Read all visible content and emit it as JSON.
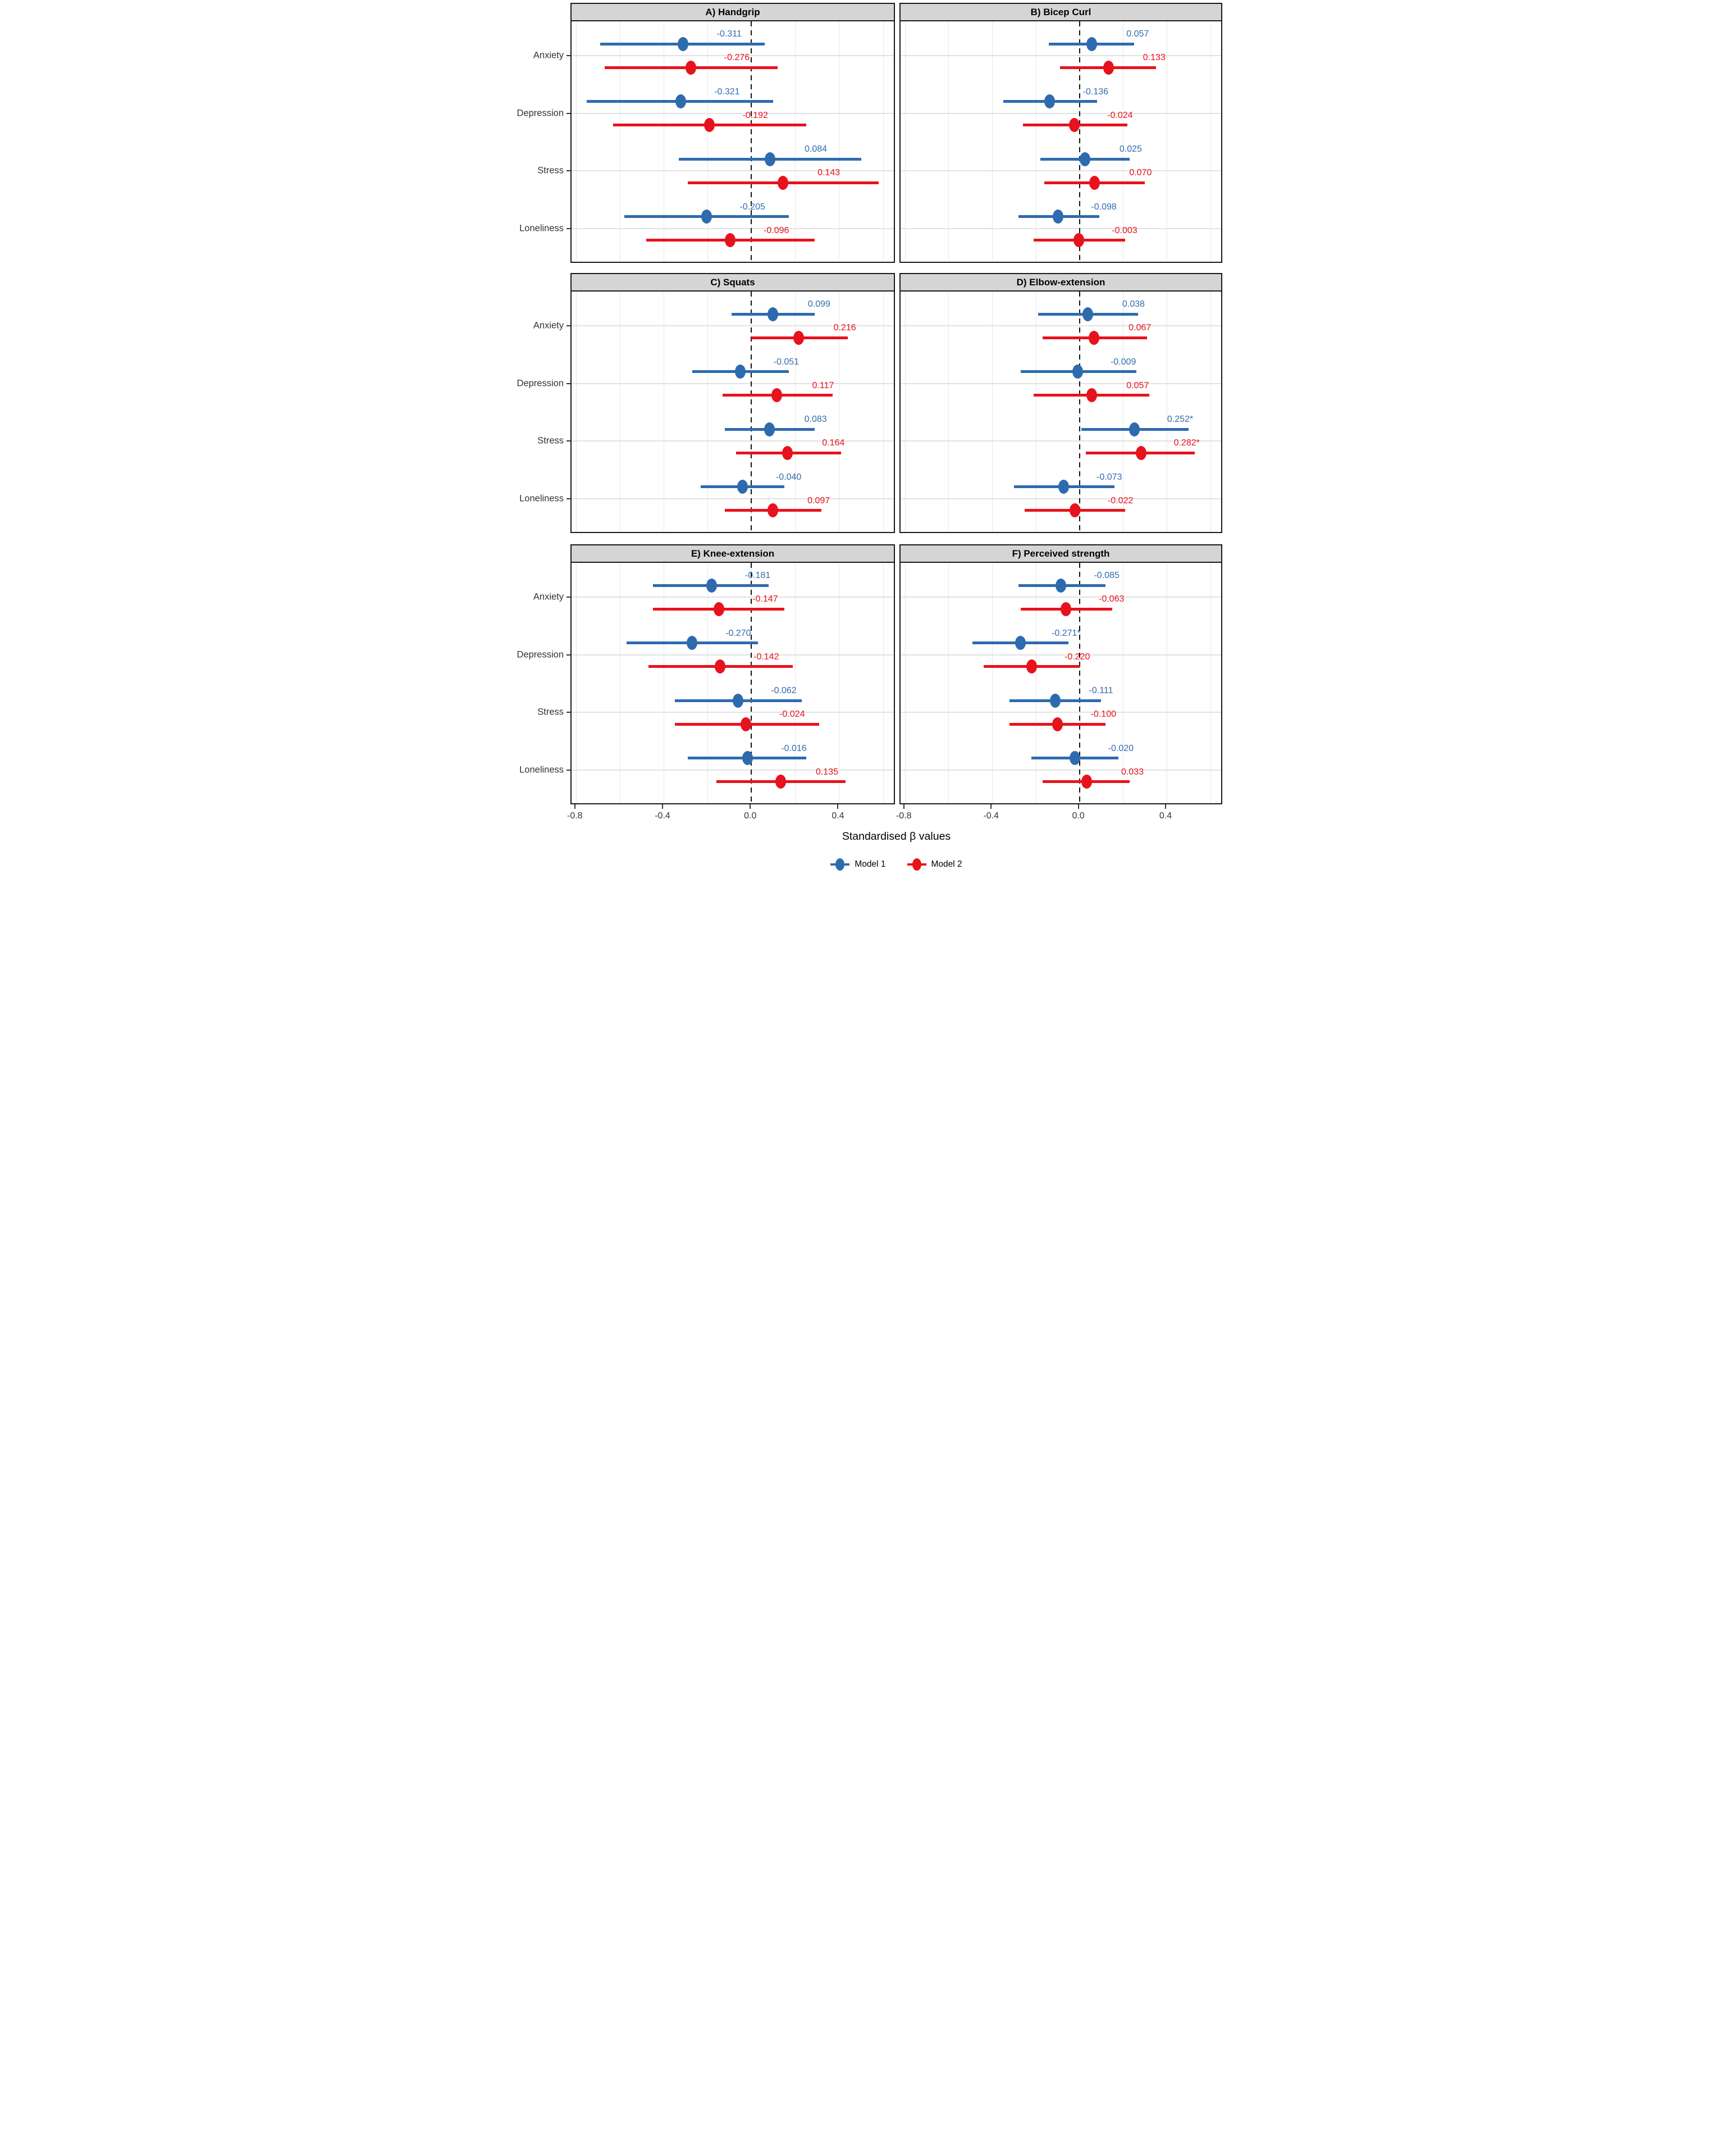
{
  "figure": {
    "x_axis": {
      "title": "Standardised β values",
      "tick_labels": [
        "-0.8",
        "-0.4",
        "0.0",
        "0.4"
      ],
      "tick_values": [
        -0.8,
        -0.4,
        0.0,
        0.4
      ],
      "domain": [
        -0.82,
        0.66
      ],
      "gridline_step": 0.2,
      "zero_reference_line": "dashed"
    },
    "categories": [
      "Anxiety",
      "Depression",
      "Stress",
      "Loneliness"
    ],
    "legend": [
      {
        "label": "Model 1",
        "color": "#2e6bae"
      },
      {
        "label": "Model 2",
        "color": "#e8121c"
      }
    ],
    "colors": {
      "model1": "#2e6bae",
      "model2": "#e8121c",
      "panel_header_bg": "#d5d5d5",
      "panel_border": "#1a1a1a",
      "grid": "#e7e7e7",
      "zero_line": "#111111"
    }
  },
  "chart_data": [
    {
      "type": "scatter",
      "subtype": "dot-and-ci-forest",
      "title": "A) Handgrip",
      "rows": [
        {
          "category": "Anxiety",
          "model1": {
            "value": -0.311,
            "label": "-0.311",
            "ci": [
              -0.69,
              0.06
            ]
          },
          "model2": {
            "value": -0.276,
            "label": "-0.276",
            "ci": [
              -0.67,
              0.12
            ]
          }
        },
        {
          "category": "Depression",
          "model1": {
            "value": -0.321,
            "label": "-0.321",
            "ci": [
              -0.75,
              0.1
            ]
          },
          "model2": {
            "value": -0.192,
            "label": "-0.192",
            "ci": [
              -0.63,
              0.25
            ]
          }
        },
        {
          "category": "Stress",
          "model1": {
            "value": 0.084,
            "label": "0.084",
            "ci": [
              -0.33,
              0.5
            ]
          },
          "model2": {
            "value": 0.143,
            "label": "0.143",
            "ci": [
              -0.29,
              0.58
            ]
          }
        },
        {
          "category": "Loneliness",
          "model1": {
            "value": -0.205,
            "label": "-0.205",
            "ci": [
              -0.58,
              0.17
            ]
          },
          "model2": {
            "value": -0.096,
            "label": "-0.096",
            "ci": [
              -0.48,
              0.29
            ]
          }
        }
      ]
    },
    {
      "type": "scatter",
      "subtype": "dot-and-ci-forest",
      "title": "B) Bicep Curl",
      "rows": [
        {
          "category": "Anxiety",
          "model1": {
            "value": 0.057,
            "label": "0.057",
            "ci": [
              -0.14,
              0.25
            ]
          },
          "model2": {
            "value": 0.133,
            "label": "0.133",
            "ci": [
              -0.09,
              0.35
            ]
          }
        },
        {
          "category": "Depression",
          "model1": {
            "value": -0.136,
            "label": "-0.136",
            "ci": [
              -0.35,
              0.08
            ]
          },
          "model2": {
            "value": -0.024,
            "label": "-0.024",
            "ci": [
              -0.26,
              0.22
            ]
          }
        },
        {
          "category": "Stress",
          "model1": {
            "value": 0.025,
            "label": "0.025",
            "ci": [
              -0.18,
              0.23
            ]
          },
          "model2": {
            "value": 0.07,
            "label": "0.070",
            "ci": [
              -0.16,
              0.3
            ]
          }
        },
        {
          "category": "Loneliness",
          "model1": {
            "value": -0.098,
            "label": "-0.098",
            "ci": [
              -0.28,
              0.09
            ]
          },
          "model2": {
            "value": -0.003,
            "label": "-0.003",
            "ci": [
              -0.21,
              0.21
            ]
          }
        }
      ]
    },
    {
      "type": "scatter",
      "subtype": "dot-and-ci-forest",
      "title": "C) Squats",
      "rows": [
        {
          "category": "Anxiety",
          "model1": {
            "value": 0.099,
            "label": "0.099",
            "ci": [
              -0.09,
              0.29
            ]
          },
          "model2": {
            "value": 0.216,
            "label": "0.216",
            "ci": [
              0.0,
              0.44
            ]
          }
        },
        {
          "category": "Depression",
          "model1": {
            "value": -0.051,
            "label": "-0.051",
            "ci": [
              -0.27,
              0.17
            ]
          },
          "model2": {
            "value": 0.117,
            "label": "0.117",
            "ci": [
              -0.13,
              0.37
            ]
          }
        },
        {
          "category": "Stress",
          "model1": {
            "value": 0.083,
            "label": "0.083",
            "ci": [
              -0.12,
              0.29
            ]
          },
          "model2": {
            "value": 0.164,
            "label": "0.164",
            "ci": [
              -0.07,
              0.41
            ]
          }
        },
        {
          "category": "Loneliness",
          "model1": {
            "value": -0.04,
            "label": "-0.040",
            "ci": [
              -0.23,
              0.15
            ]
          },
          "model2": {
            "value": 0.097,
            "label": "0.097",
            "ci": [
              -0.12,
              0.32
            ]
          }
        }
      ]
    },
    {
      "type": "scatter",
      "subtype": "dot-and-ci-forest",
      "title": "D) Elbow-extension",
      "rows": [
        {
          "category": "Anxiety",
          "model1": {
            "value": 0.038,
            "label": "0.038",
            "ci": [
              -0.19,
              0.27
            ]
          },
          "model2": {
            "value": 0.067,
            "label": "0.067",
            "ci": [
              -0.17,
              0.31
            ]
          }
        },
        {
          "category": "Depression",
          "model1": {
            "value": -0.009,
            "label": "-0.009",
            "ci": [
              -0.27,
              0.26
            ]
          },
          "model2": {
            "value": 0.057,
            "label": "0.057",
            "ci": [
              -0.21,
              0.32
            ]
          }
        },
        {
          "category": "Stress",
          "model1": {
            "value": 0.252,
            "label": "0.252*",
            "ci": [
              0.01,
              0.5
            ]
          },
          "model2": {
            "value": 0.282,
            "label": "0.282*",
            "ci": [
              0.03,
              0.53
            ]
          }
        },
        {
          "category": "Loneliness",
          "model1": {
            "value": -0.073,
            "label": "-0.073",
            "ci": [
              -0.3,
              0.16
            ]
          },
          "model2": {
            "value": -0.022,
            "label": "-0.022",
            "ci": [
              -0.25,
              0.21
            ]
          }
        }
      ]
    },
    {
      "type": "scatter",
      "subtype": "dot-and-ci-forest",
      "title": "E) Knee-extension",
      "rows": [
        {
          "category": "Anxiety",
          "model1": {
            "value": -0.181,
            "label": "-0.181",
            "ci": [
              -0.45,
              0.08
            ]
          },
          "model2": {
            "value": -0.147,
            "label": "-0.147",
            "ci": [
              -0.45,
              0.15
            ]
          }
        },
        {
          "category": "Depression",
          "model1": {
            "value": -0.27,
            "label": "-0.270",
            "ci": [
              -0.57,
              0.03
            ]
          },
          "model2": {
            "value": -0.142,
            "label": "-0.142",
            "ci": [
              -0.47,
              0.19
            ]
          }
        },
        {
          "category": "Stress",
          "model1": {
            "value": -0.062,
            "label": "-0.062",
            "ci": [
              -0.35,
              0.23
            ]
          },
          "model2": {
            "value": -0.024,
            "label": "-0.024",
            "ci": [
              -0.35,
              0.31
            ]
          }
        },
        {
          "category": "Loneliness",
          "model1": {
            "value": -0.016,
            "label": "-0.016",
            "ci": [
              -0.29,
              0.25
            ]
          },
          "model2": {
            "value": 0.135,
            "label": "0.135",
            "ci": [
              -0.16,
              0.43
            ]
          }
        }
      ]
    },
    {
      "type": "scatter",
      "subtype": "dot-and-ci-forest",
      "title": "F) Perceived strength",
      "rows": [
        {
          "category": "Anxiety",
          "model1": {
            "value": -0.085,
            "label": "-0.085",
            "ci": [
              -0.28,
              0.12
            ]
          },
          "model2": {
            "value": -0.063,
            "label": "-0.063",
            "ci": [
              -0.27,
              0.15
            ]
          }
        },
        {
          "category": "Depression",
          "model1": {
            "value": -0.271,
            "label": "-0.271*",
            "ci": [
              -0.49,
              -0.05
            ]
          },
          "model2": {
            "value": -0.22,
            "label": "-0.220",
            "ci": [
              -0.44,
              0.0
            ]
          }
        },
        {
          "category": "Stress",
          "model1": {
            "value": -0.111,
            "label": "-0.111",
            "ci": [
              -0.32,
              0.1
            ]
          },
          "model2": {
            "value": -0.1,
            "label": "-0.100",
            "ci": [
              -0.32,
              0.12
            ]
          }
        },
        {
          "category": "Loneliness",
          "model1": {
            "value": -0.02,
            "label": "-0.020",
            "ci": [
              -0.22,
              0.18
            ]
          },
          "model2": {
            "value": 0.033,
            "label": "0.033",
            "ci": [
              -0.17,
              0.23
            ]
          }
        }
      ]
    }
  ]
}
